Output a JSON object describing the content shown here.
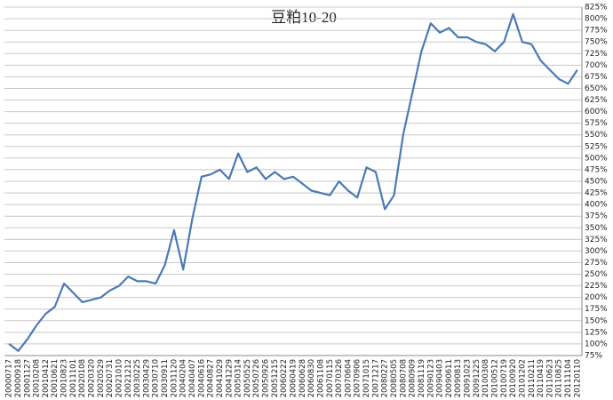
{
  "chart_data": {
    "type": "line",
    "title": "豆粕10-20",
    "categories": [
      "20000717",
      "20000918",
      "20001127",
      "20010208",
      "20010412",
      "20010621",
      "20010823",
      "20011101",
      "20020108",
      "20020320",
      "20020529",
      "20020731",
      "20021010",
      "20021212",
      "20030225",
      "20030429",
      "20030710",
      "20030911",
      "20031120",
      "20040204",
      "20040407",
      "20040616",
      "20040827",
      "20041029",
      "20041229",
      "20050314",
      "20050525",
      "20050726",
      "20050926",
      "20051215",
      "20060222",
      "20060419",
      "20060628",
      "20060830",
      "20061108",
      "20070115",
      "20070326",
      "20070604",
      "20070906",
      "20071015",
      "20071217",
      "20080227",
      "20080505",
      "20080708",
      "20080909",
      "20081119",
      "20090123",
      "20090403",
      "20090611",
      "20090813",
      "20091023",
      "20091225",
      "20100308",
      "20100512",
      "20100719",
      "20100920",
      "20101202",
      "20110211",
      "20110419",
      "20110623",
      "20110825",
      "20111104",
      "20120110"
    ],
    "series": [
      {
        "name": "豆粕10-20",
        "color": "#4a7ab5",
        "values": [
          100,
          85,
          110,
          140,
          165,
          180,
          230,
          210,
          190,
          195,
          200,
          215,
          225,
          245,
          235,
          235,
          230,
          270,
          345,
          260,
          370,
          460,
          465,
          475,
          455,
          510,
          470,
          480,
          455,
          470,
          455,
          460,
          445,
          430,
          425,
          420,
          450,
          430,
          415,
          480,
          470,
          390,
          420,
          550,
          640,
          730,
          790,
          770,
          780,
          760,
          760,
          750,
          745,
          730,
          750,
          810,
          750,
          745,
          710,
          690,
          670,
          660,
          690
        ]
      }
    ],
    "ylim": [
      75,
      825
    ],
    "yticks": [
      {
        "value": 75,
        "label": "75%"
      },
      {
        "value": 100,
        "label": "100%"
      },
      {
        "value": 125,
        "label": "125%"
      },
      {
        "value": 150,
        "label": "150%"
      },
      {
        "value": 175,
        "label": "175%"
      },
      {
        "value": 200,
        "label": "200%"
      },
      {
        "value": 225,
        "label": "225%"
      },
      {
        "value": 250,
        "label": "250%"
      },
      {
        "value": 275,
        "label": "275%"
      },
      {
        "value": 300,
        "label": "300%"
      },
      {
        "value": 325,
        "label": "325%"
      },
      {
        "value": 350,
        "label": "350%"
      },
      {
        "value": 375,
        "label": "375%"
      },
      {
        "value": 400,
        "label": "400%"
      },
      {
        "value": 425,
        "label": "425%"
      },
      {
        "value": 450,
        "label": "450%"
      },
      {
        "value": 475,
        "label": "475%"
      },
      {
        "value": 500,
        "label": "500%"
      },
      {
        "value": 525,
        "label": "525%"
      },
      {
        "value": 550,
        "label": "550%"
      },
      {
        "value": 575,
        "label": "575%"
      },
      {
        "value": 600,
        "label": "600%"
      },
      {
        "value": 625,
        "label": "625%"
      },
      {
        "value": 650,
        "label": "650%"
      },
      {
        "value": 675,
        "label": "675%"
      },
      {
        "value": 700,
        "label": "700%"
      },
      {
        "value": 725,
        "label": "725%"
      },
      {
        "value": 750,
        "label": "750%"
      },
      {
        "value": 775,
        "label": "775%"
      },
      {
        "value": 800,
        "label": "800%"
      },
      {
        "value": 825,
        "label": "825%"
      }
    ],
    "grid": true
  }
}
